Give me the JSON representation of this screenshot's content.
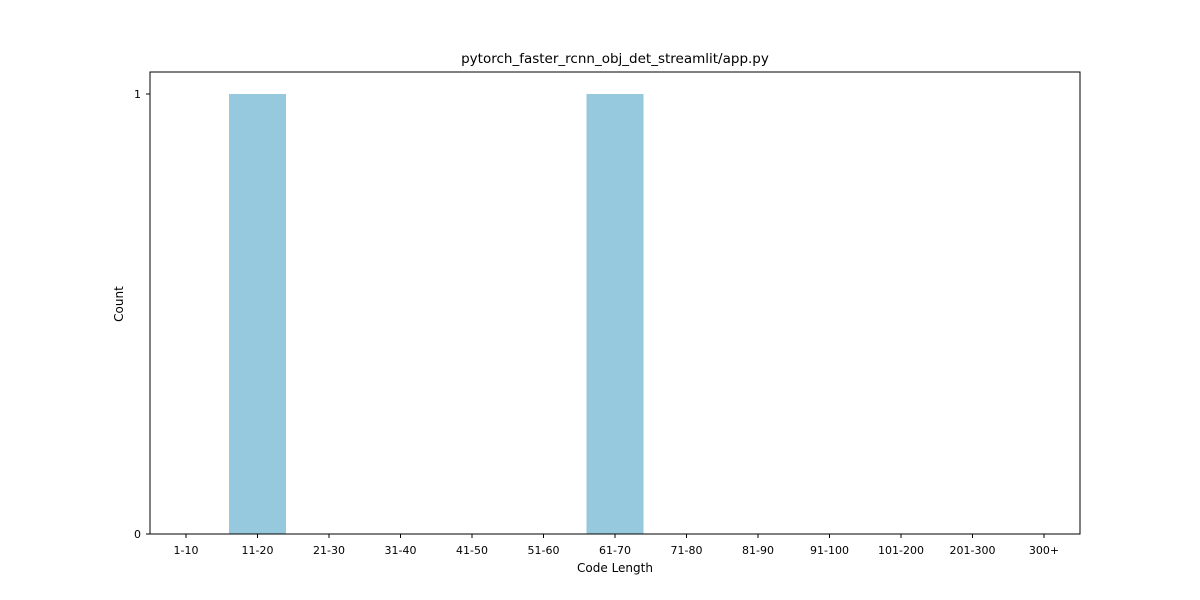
{
  "chart_data": {
    "type": "bar",
    "title": "pytorch_faster_rcnn_obj_det_streamlit/app.py",
    "xlabel": "Code Length",
    "ylabel": "Count",
    "categories": [
      "1-10",
      "11-20",
      "21-30",
      "31-40",
      "41-50",
      "51-60",
      "61-70",
      "71-80",
      "81-90",
      "91-100",
      "101-200",
      "201-300",
      "300+"
    ],
    "values": [
      0,
      1,
      0,
      0,
      0,
      0,
      1,
      0,
      0,
      0,
      0,
      0,
      0
    ],
    "yticks": [
      0,
      1
    ],
    "ylim": [
      0,
      1
    ],
    "grid": false,
    "bar_color": "#96c9dd"
  }
}
